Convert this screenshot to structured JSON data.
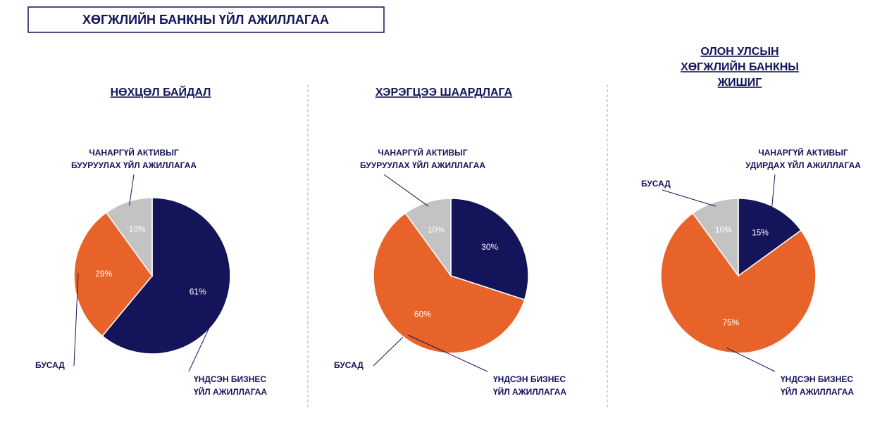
{
  "title": "ХӨГЖЛИЙН БАНКНЫ ҮЙЛ АЖИЛЛАГАА",
  "chart_data": [
    {
      "type": "pie",
      "title": [
        "НӨХЦӨЛ БАЙДАЛ"
      ],
      "categories": [
        [
          "ҮНДСЭН БИЗНЕС",
          "ҮЙЛ АЖИЛЛАГАА"
        ],
        [
          "БУСАД"
        ],
        [
          "ЧАНАРГҮЙ АКТИВЫГ",
          "БУУРУУЛАХ ҮЙЛ АЖИЛЛАГАА"
        ]
      ],
      "values": [
        61,
        29,
        10
      ],
      "value_labels": [
        "61%",
        "29%",
        "10%"
      ],
      "colors": [
        "#14145a",
        "#e8632a",
        "#c3c3c3"
      ]
    },
    {
      "type": "pie",
      "title": [
        "ХЭРЭГЦЭЭ ШААРДЛАГА"
      ],
      "categories": [
        [
          "БУСАД"
        ],
        [
          "ҮНДСЭН БИЗНЕС",
          "ҮЙЛ АЖИЛЛАГАА"
        ],
        [
          "ЧАНАРГҮЙ АКТИВЫГ",
          "БУУРУУЛАХ ҮЙЛ АЖИЛЛАГАА"
        ]
      ],
      "values": [
        30,
        60,
        10
      ],
      "value_labels": [
        "30%",
        "60%",
        "10%"
      ],
      "colors": [
        "#14145a",
        "#e8632a",
        "#c3c3c3"
      ]
    },
    {
      "type": "pie",
      "title": [
        "ОЛОН УЛСЫН",
        "ХӨГЖЛИЙН БАНКНЫ",
        "ЖИШИГ"
      ],
      "categories": [
        [
          "ЧАНАРГҮЙ АКТИВЫГ",
          "УДИРДАХ ҮЙЛ АЖИЛЛАГАА"
        ],
        [
          "ҮНДСЭН БИЗНЕС",
          "ҮЙЛ АЖИЛЛАГАА"
        ],
        [
          "БУСАД"
        ]
      ],
      "values": [
        15,
        75,
        10
      ],
      "value_labels": [
        "15%",
        "75%",
        "10%"
      ],
      "colors": [
        "#14145a",
        "#e8632a",
        "#c3c3c3"
      ]
    }
  ]
}
